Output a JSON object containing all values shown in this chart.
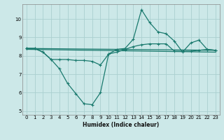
{
  "xlabel": "Humidex (Indice chaleur)",
  "background_color": "#cce8e8",
  "grid_color": "#aad0d0",
  "line_color": "#1a7a6e",
  "xlim": [
    -0.5,
    23.5
  ],
  "ylim": [
    4.8,
    10.8
  ],
  "yticks": [
    5,
    6,
    7,
    8,
    9,
    10
  ],
  "xticks": [
    0,
    1,
    2,
    3,
    4,
    5,
    6,
    7,
    8,
    9,
    10,
    11,
    12,
    13,
    14,
    15,
    16,
    17,
    18,
    19,
    20,
    21,
    22,
    23
  ],
  "series": {
    "line1_x": [
      0,
      1,
      2,
      3,
      4,
      5,
      6,
      7,
      8,
      9,
      10,
      11,
      12,
      13,
      14,
      15,
      16,
      17,
      18,
      19,
      20,
      21,
      22,
      23
    ],
    "line1_y": [
      8.4,
      8.4,
      8.2,
      7.8,
      7.3,
      6.5,
      5.95,
      5.4,
      5.35,
      6.0,
      8.1,
      8.35,
      8.4,
      8.9,
      10.5,
      9.8,
      9.3,
      9.2,
      8.8,
      8.2,
      8.7,
      8.85,
      8.35,
      8.3
    ],
    "line2_x": [
      0,
      1,
      2,
      3,
      4,
      5,
      6,
      7,
      8,
      9,
      10,
      11,
      12,
      13,
      14,
      15,
      16,
      17,
      18,
      19,
      20,
      21,
      22,
      23
    ],
    "line2_y": [
      8.4,
      8.4,
      8.2,
      7.8,
      7.8,
      7.8,
      7.75,
      7.75,
      7.7,
      7.5,
      8.1,
      8.2,
      8.35,
      8.5,
      8.6,
      8.65,
      8.65,
      8.65,
      8.25,
      8.25,
      8.25,
      8.3,
      8.35,
      8.3
    ],
    "line3_x": [
      0,
      23
    ],
    "line3_y": [
      8.4,
      8.3
    ],
    "line4_x": [
      0,
      23
    ],
    "line4_y": [
      8.35,
      8.2
    ]
  }
}
